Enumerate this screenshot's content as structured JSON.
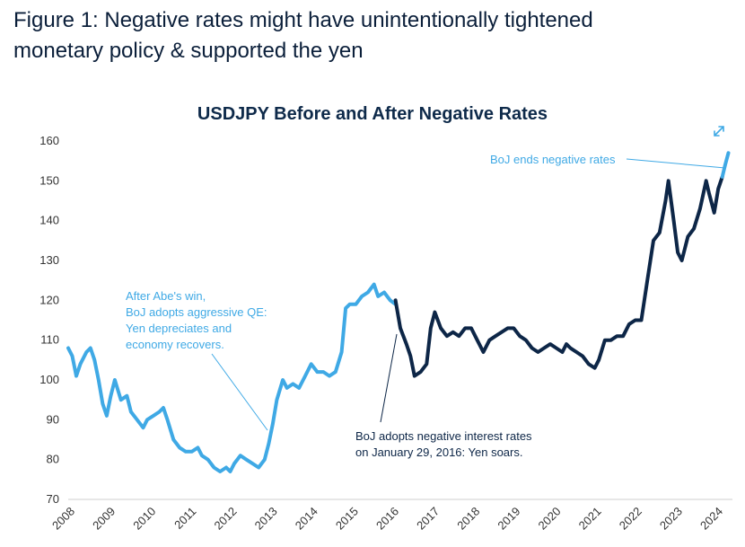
{
  "figure_title_line1": "Figure 1: Negative rates might have unintentionally tightened",
  "figure_title_line2": "monetary policy & supported the yen",
  "icons": {
    "expand": "expand-arrows-icon"
  },
  "colors": {
    "before": "#3fa9e5",
    "after": "#0d2647",
    "title": "#0e2a4a",
    "annotation_dark": "#0d2647",
    "annotation_light": "#3fa9e5"
  },
  "chart_data": {
    "type": "line",
    "title": "USDJPY Before and After Negative Rates",
    "xlabel": "",
    "ylabel": "",
    "ylim": [
      70,
      160
    ],
    "xlim": [
      2008,
      2024.4
    ],
    "y_ticks": [
      "70",
      "80",
      "90",
      "100",
      "110",
      "120",
      "130",
      "140",
      "150",
      "160"
    ],
    "x_ticks": [
      "2008",
      "2009",
      "2010",
      "2011",
      "2012",
      "2013",
      "2014",
      "2015",
      "2016",
      "2017",
      "2018",
      "2019",
      "2020",
      "2021",
      "2022",
      "2023",
      "2024"
    ],
    "grid": false,
    "series": [
      {
        "x": [
          2008.0,
          2008.1,
          2008.2,
          2008.3,
          2008.45,
          2008.55,
          2008.65,
          2008.75,
          2008.85,
          2008.95,
          2009.05,
          2009.15,
          2009.3,
          2009.45,
          2009.55,
          2009.7,
          2009.85,
          2009.95,
          2010.1,
          2010.25,
          2010.35,
          2010.45,
          2010.6,
          2010.75,
          2010.9,
          2011.05,
          2011.2,
          2011.3,
          2011.45,
          2011.6,
          2011.75,
          2011.9,
          2012.0,
          2012.1,
          2012.25,
          2012.4,
          2012.55,
          2012.7,
          2012.85,
          2012.95,
          2013.05,
          2013.15,
          2013.3,
          2013.4,
          2013.55,
          2013.7,
          2013.85,
          2014.0,
          2014.15,
          2014.3,
          2014.45,
          2014.6,
          2014.75,
          2014.85,
          2014.95,
          2015.1,
          2015.25,
          2015.4,
          2015.55,
          2015.65,
          2015.8,
          2015.95,
          2016.08
        ],
        "values": [
          108,
          106,
          101,
          104,
          107,
          108,
          105,
          100,
          94,
          91,
          96,
          100,
          95,
          96,
          92,
          90,
          88,
          90,
          91,
          92,
          93,
          90,
          85,
          83,
          82,
          82,
          83,
          81,
          80,
          78,
          77,
          78,
          77,
          79,
          81,
          80,
          79,
          78,
          80,
          84,
          89,
          95,
          100,
          98,
          99,
          98,
          101,
          104,
          102,
          102,
          101,
          102,
          107,
          118,
          119,
          119,
          121,
          122,
          124,
          121,
          122,
          120,
          119
        ]
      },
      {
        "x": [
          2016.08,
          2016.2,
          2016.35,
          2016.45,
          2016.55,
          2016.7,
          2016.85,
          2016.95,
          2017.05,
          2017.2,
          2017.35,
          2017.5,
          2017.65,
          2017.8,
          2017.95,
          2018.1,
          2018.25,
          2018.4,
          2018.55,
          2018.7,
          2018.85,
          2019.0,
          2019.15,
          2019.3,
          2019.45,
          2019.6,
          2019.75,
          2019.9,
          2020.05,
          2020.2,
          2020.3,
          2020.4,
          2020.55,
          2020.7,
          2020.85,
          2021.0,
          2021.1,
          2021.25,
          2021.4,
          2021.55,
          2021.7,
          2021.85,
          2022.0,
          2022.15,
          2022.3,
          2022.45,
          2022.6,
          2022.75,
          2022.82,
          2022.95,
          2023.05,
          2023.15,
          2023.3,
          2023.45,
          2023.6,
          2023.75,
          2023.82,
          2023.95,
          2024.05,
          2024.15
        ],
        "values": [
          120,
          113,
          109,
          106,
          101,
          102,
          104,
          113,
          117,
          113,
          111,
          112,
          111,
          113,
          113,
          110,
          107,
          110,
          111,
          112,
          113,
          113,
          111,
          110,
          108,
          107,
          108,
          109,
          108,
          107,
          109,
          108,
          107,
          106,
          104,
          103,
          105,
          110,
          110,
          111,
          111,
          114,
          115,
          115,
          125,
          135,
          137,
          145,
          150,
          140,
          132,
          130,
          136,
          138,
          143,
          150,
          147,
          142,
          148,
          151
        ]
      },
      {
        "x": [
          2024.15,
          2024.22,
          2024.3
        ],
        "values": [
          151,
          154,
          157
        ]
      }
    ],
    "annotations": [
      {
        "lines": [
          "After Abe's win,",
          "BoJ adopts aggressive QE:",
          "Yen depreciates and",
          "economy recovers."
        ]
      },
      {
        "lines": [
          "BoJ adopts negative interest rates",
          "on January 29, 2016: Yen soars."
        ]
      },
      {
        "lines": [
          "BoJ ends negative rates"
        ]
      }
    ]
  }
}
